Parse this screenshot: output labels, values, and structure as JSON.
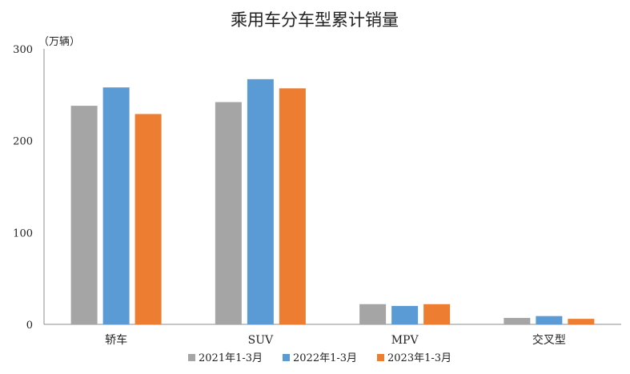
{
  "chart_data": {
    "type": "bar",
    "title": "乘用车分车型累计销量",
    "unit_label": "（万辆）",
    "categories": [
      "轿车",
      "SUV",
      "MPV",
      "交叉型"
    ],
    "series": [
      {
        "name": "2021年1-3月",
        "color": "#a5a5a5",
        "values": [
          238,
          242,
          22,
          7
        ]
      },
      {
        "name": "2022年1-3月",
        "color": "#5b9bd5",
        "values": [
          258,
          267,
          20,
          9
        ]
      },
      {
        "name": "2023年1-3月",
        "color": "#ed7d31",
        "values": [
          229,
          257,
          22,
          6
        ]
      }
    ],
    "yticks": [
      "0",
      "100",
      "200",
      "300"
    ],
    "ylim": [
      0,
      300
    ],
    "grid": false,
    "legend_position": "bottom"
  }
}
